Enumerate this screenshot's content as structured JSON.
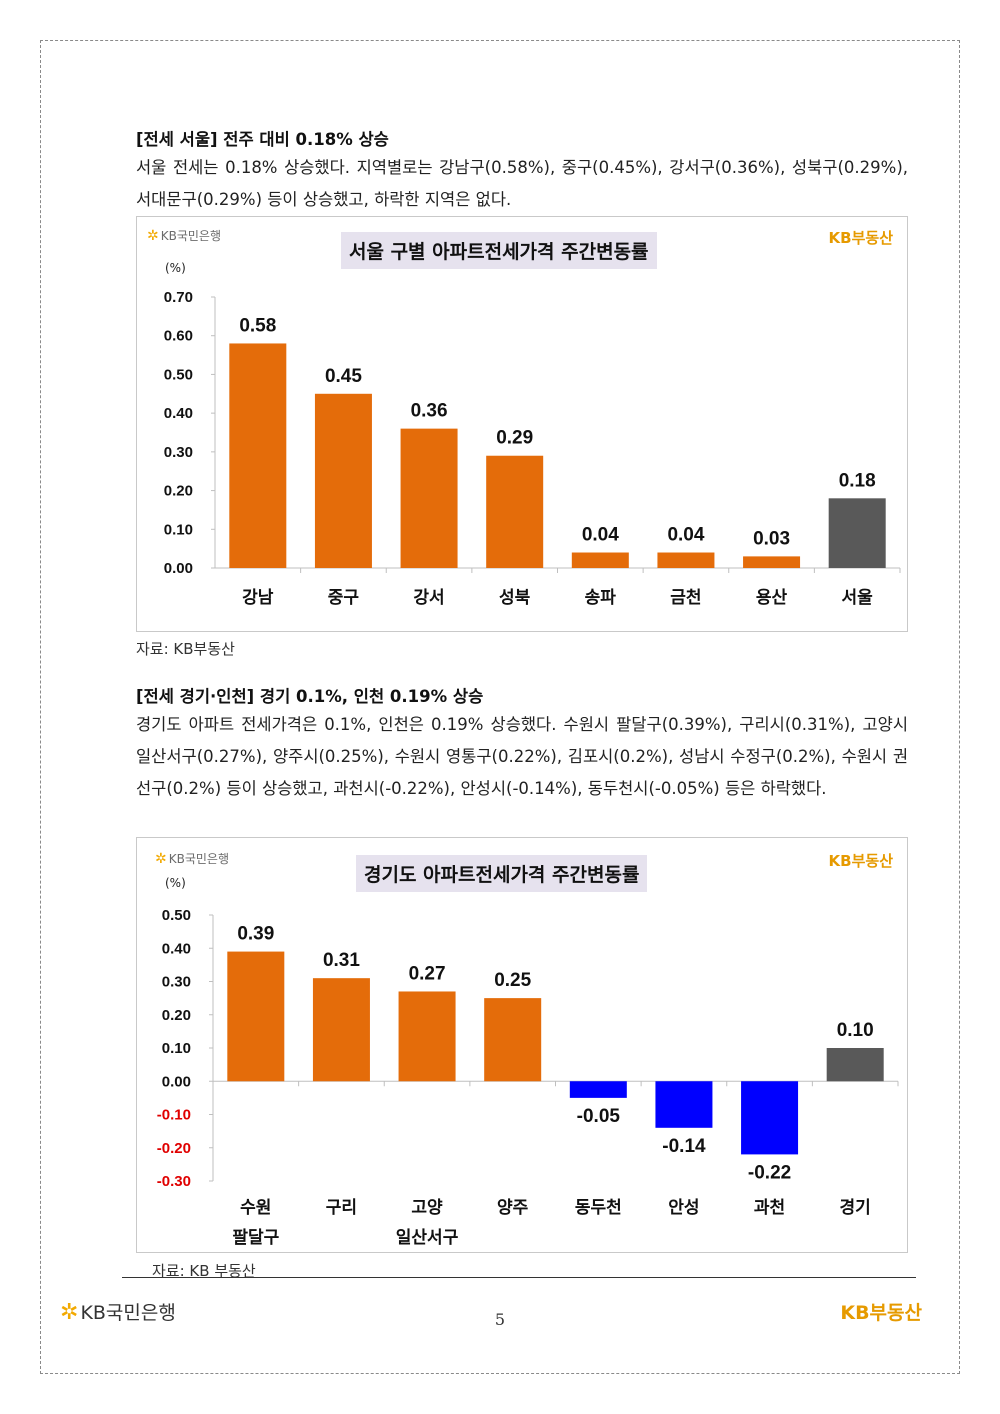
{
  "brand": {
    "bank_logo_text": "KB국민은행",
    "realestate_logo_text": "KB부동산"
  },
  "section1": {
    "heading": "[전세 서울] 전주 대비 0.18% 상승",
    "paragraph": "서울 전세는 0.18% 상승했다. 지역별로는 강남구(0.58%), 중구(0.45%), 강서구(0.36%), 성북구(0.29%), 서대문구(0.29%) 등이 상승했고, 하락한 지역은 없다.",
    "source": "자료: KB부동산"
  },
  "section2": {
    "heading": "[전세 경기·인천] 경기 0.1%, 인천 0.19% 상승",
    "paragraph": "경기도 아파트 전세가격은 0.1%, 인천은 0.19% 상승했다. 수원시 팔달구(0.39%), 구리시(0.31%), 고양시 일산서구(0.27%), 양주시(0.25%), 수원시 영통구(0.22%), 김포시(0.2%), 성남시 수정구(0.2%), 수원시 권선구(0.2%) 등이 상승했고, 과천시(-0.22%), 안성시(-0.14%), 동두천시(-0.05%) 등은 하락했다.",
    "source": "자료: KB 부동산"
  },
  "colors": {
    "positive_bar": "#e46c0a",
    "negative_bar": "#0000ff",
    "total_bar": "#595959",
    "negative_tick": "#e00000",
    "title_bg": "#e6e2ee",
    "brand_orange": "#e69a00"
  },
  "chart_data": [
    {
      "type": "bar",
      "title": "서울 구별 아파트전세가격 주간변동률",
      "unit": "(%)",
      "categories": [
        "강남",
        "중구",
        "강서",
        "성북",
        "송파",
        "금천",
        "용산",
        "서울"
      ],
      "values": [
        0.58,
        0.45,
        0.36,
        0.29,
        0.04,
        0.04,
        0.03,
        0.18
      ],
      "value_labels": [
        "0.58",
        "0.45",
        "0.36",
        "0.29",
        "0.04",
        "0.04",
        "0.03",
        "0.18"
      ],
      "highlight_last": true,
      "ylim": [
        0,
        0.7
      ],
      "yticks": [
        0,
        0.1,
        0.2,
        0.3,
        0.4,
        0.5,
        0.6,
        0.7
      ],
      "ytick_labels": [
        "0.00",
        "0.10",
        "0.20",
        "0.30",
        "0.40",
        "0.50",
        "0.60",
        "0.70"
      ]
    },
    {
      "type": "bar",
      "title": "경기도 아파트전세가격 주간변동률",
      "unit": "(%)",
      "categories": [
        [
          "수원",
          "팔달구"
        ],
        [
          "구리"
        ],
        [
          "고양",
          "일산서구"
        ],
        [
          "양주"
        ],
        [
          "동두천"
        ],
        [
          "안성"
        ],
        [
          "과천"
        ],
        [
          "경기"
        ]
      ],
      "values": [
        0.39,
        0.31,
        0.27,
        0.25,
        -0.05,
        -0.14,
        -0.22,
        0.1
      ],
      "value_labels": [
        "0.39",
        "0.31",
        "0.27",
        "0.25",
        "-0.05",
        "-0.14",
        "-0.22",
        "0.10"
      ],
      "highlight_last": true,
      "ylim": [
        -0.3,
        0.5
      ],
      "yticks": [
        -0.3,
        -0.2,
        -0.1,
        0,
        0.1,
        0.2,
        0.3,
        0.4,
        0.5
      ],
      "ytick_labels": [
        "-0.30",
        "-0.20",
        "-0.10",
        "0.00",
        "0.10",
        "0.20",
        "0.30",
        "0.40",
        "0.50"
      ]
    }
  ],
  "page": {
    "number": "5"
  }
}
